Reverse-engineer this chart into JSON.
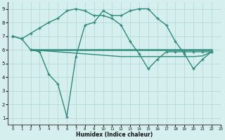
{
  "line1_x": [
    0,
    1,
    2,
    3,
    4,
    5,
    6,
    7,
    8,
    9,
    10,
    11,
    12,
    13,
    14,
    15,
    16,
    17,
    18,
    19,
    20,
    21,
    22
  ],
  "line1_y": [
    7.0,
    6.8,
    7.2,
    7.6,
    8.0,
    8.3,
    8.85,
    9.0,
    8.85,
    8.5,
    8.5,
    8.3,
    7.8,
    6.6,
    5.7,
    4.6,
    5.3,
    5.85,
    5.85,
    5.85,
    5.85,
    5.85,
    5.85
  ],
  "line2_x": [
    0,
    1,
    2,
    3,
    4,
    5,
    6,
    7,
    8,
    9,
    10,
    11,
    12,
    13,
    14,
    15,
    16,
    17,
    18,
    19,
    20,
    21,
    22
  ],
  "line2_y": [
    7.0,
    6.8,
    6.0,
    5.85,
    4.2,
    3.5,
    1.1,
    5.5,
    7.8,
    8.0,
    8.85,
    8.5,
    8.5,
    8.85,
    9.0,
    9.0,
    8.3,
    7.8,
    6.6,
    5.7,
    4.6,
    5.3,
    5.85
  ],
  "line3_x": [
    2,
    22
  ],
  "line3_y": [
    6.0,
    6.0
  ],
  "line4_x": [
    2,
    7,
    8,
    9,
    10,
    11,
    12,
    13,
    14,
    15,
    16,
    17,
    18,
    19,
    20,
    21,
    22
  ],
  "line4_y": [
    6.0,
    5.75,
    5.7,
    5.65,
    5.6,
    5.55,
    5.5,
    5.5,
    5.5,
    5.5,
    5.5,
    5.5,
    5.5,
    5.5,
    5.5,
    5.55,
    5.85
  ],
  "line_color": "#2e8b7a",
  "bg_color": "#d5eeee",
  "grid_color": "#b8d8d8",
  "xlabel": "Humidex (Indice chaleur)",
  "xlim": [
    -0.5,
    23
  ],
  "ylim": [
    0.5,
    9.5
  ],
  "yticks": [
    1,
    2,
    3,
    4,
    5,
    6,
    7,
    8,
    9
  ],
  "xticks": [
    0,
    1,
    2,
    3,
    4,
    5,
    6,
    7,
    8,
    9,
    10,
    11,
    12,
    13,
    14,
    15,
    16,
    17,
    18,
    19,
    20,
    21,
    22,
    23
  ]
}
